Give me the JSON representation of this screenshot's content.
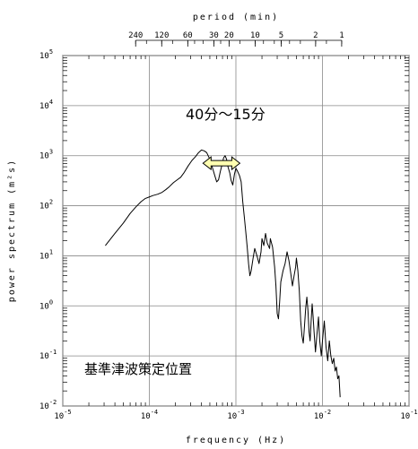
{
  "chart_data": {
    "type": "line",
    "xlabel": "frequency (Hz)",
    "ylabel": "power spectrum (m²s)",
    "top_axis_label": "period (min)",
    "x_scale": "log",
    "y_scale": "log",
    "xlim": [
      1e-05,
      0.1
    ],
    "ylim": [
      0.01,
      100000
    ],
    "grid": true,
    "x_ticks": [
      {
        "value": 1e-05,
        "base": "10",
        "exp": "-5"
      },
      {
        "value": 0.0001,
        "base": "10",
        "exp": "-4"
      },
      {
        "value": 0.001,
        "base": "10",
        "exp": "-3"
      },
      {
        "value": 0.01,
        "base": "10",
        "exp": "-2"
      },
      {
        "value": 0.1,
        "base": "10",
        "exp": "-1"
      }
    ],
    "y_ticks": [
      {
        "value": 0.01,
        "base": "10",
        "exp": "-2"
      },
      {
        "value": 0.1,
        "base": "10",
        "exp": "-1"
      },
      {
        "value": 1,
        "base": "10",
        "exp": "0"
      },
      {
        "value": 10,
        "base": "10",
        "exp": "1"
      },
      {
        "value": 100,
        "base": "10",
        "exp": "2"
      },
      {
        "value": 1000,
        "base": "10",
        "exp": "3"
      },
      {
        "value": 10000,
        "base": "10",
        "exp": "4"
      },
      {
        "value": 100000,
        "base": "10",
        "exp": "5"
      }
    ],
    "period_ticks": [
      {
        "label": "240",
        "minutes": 240
      },
      {
        "label": "120",
        "minutes": 120
      },
      {
        "label": "60",
        "minutes": 60
      },
      {
        "label": "30",
        "minutes": 30
      },
      {
        "label": "20",
        "minutes": 20
      },
      {
        "label": "10",
        "minutes": 10
      },
      {
        "label": "5",
        "minutes": 5
      },
      {
        "label": "2",
        "minutes": 2
      },
      {
        "label": "1",
        "minutes": 1
      }
    ],
    "annotations": {
      "range_label": "40分～15分",
      "range_arrow_minutes": [
        40,
        15
      ],
      "location_label": "基準津波策定位置"
    },
    "series": [
      {
        "color": "#000000",
        "points": [
          [
            3.1e-05,
            16
          ],
          [
            4e-05,
            28
          ],
          [
            5e-05,
            45
          ],
          [
            6e-05,
            70
          ],
          [
            7e-05,
            95
          ],
          [
            8e-05,
            120
          ],
          [
            9e-05,
            140
          ],
          [
            0.0001,
            150
          ],
          [
            0.00011,
            160
          ],
          [
            0.000125,
            170
          ],
          [
            0.00014,
            185
          ],
          [
            0.000155,
            210
          ],
          [
            0.00017,
            240
          ],
          [
            0.00019,
            290
          ],
          [
            0.00021,
            330
          ],
          [
            0.00023,
            370
          ],
          [
            0.00025,
            450
          ],
          [
            0.00028,
            620
          ],
          [
            0.00031,
            800
          ],
          [
            0.00034,
            950
          ],
          [
            0.00037,
            1150
          ],
          [
            0.0004,
            1300
          ],
          [
            0.00043,
            1250
          ],
          [
            0.00046,
            1150
          ],
          [
            0.0005,
            850
          ],
          [
            0.00054,
            550
          ],
          [
            0.00057,
            400
          ],
          [
            0.0006,
            300
          ],
          [
            0.00063,
            330
          ],
          [
            0.00066,
            480
          ],
          [
            0.00069,
            650
          ],
          [
            0.00072,
            900
          ],
          [
            0.00075,
            1000
          ],
          [
            0.00078,
            850
          ],
          [
            0.00081,
            600
          ],
          [
            0.00085,
            450
          ],
          [
            0.00088,
            320
          ],
          [
            0.00092,
            260
          ],
          [
            0.00096,
            420
          ],
          [
            0.001,
            560
          ],
          [
            0.00105,
            480
          ],
          [
            0.0011,
            400
          ],
          [
            0.00115,
            300
          ],
          [
            0.0012,
            120
          ],
          [
            0.00125,
            60
          ],
          [
            0.0013,
            30
          ],
          [
            0.00135,
            15
          ],
          [
            0.0014,
            7
          ],
          [
            0.00145,
            4
          ],
          [
            0.0015,
            5
          ],
          [
            0.00158,
            9
          ],
          [
            0.00165,
            14
          ],
          [
            0.00175,
            10
          ],
          [
            0.00185,
            7
          ],
          [
            0.00195,
            12
          ],
          [
            0.002,
            22
          ],
          [
            0.0021,
            16
          ],
          [
            0.0022,
            28
          ],
          [
            0.0023,
            18
          ],
          [
            0.00245,
            14
          ],
          [
            0.0025,
            22
          ],
          [
            0.00265,
            15
          ],
          [
            0.0028,
            6
          ],
          [
            0.0029,
            2.5
          ],
          [
            0.003,
            0.7
          ],
          [
            0.0031,
            0.55
          ],
          [
            0.0032,
            1.2
          ],
          [
            0.0033,
            3
          ],
          [
            0.0035,
            5
          ],
          [
            0.0037,
            7
          ],
          [
            0.0039,
            12
          ],
          [
            0.0041,
            8
          ],
          [
            0.0043,
            4.5
          ],
          [
            0.0045,
            2.5
          ],
          [
            0.0047,
            4
          ],
          [
            0.0049,
            6
          ],
          [
            0.005,
            9
          ],
          [
            0.0052,
            5
          ],
          [
            0.0054,
            2
          ],
          [
            0.0056,
            0.5
          ],
          [
            0.0058,
            0.25
          ],
          [
            0.006,
            0.18
          ],
          [
            0.0062,
            0.4
          ],
          [
            0.0064,
            0.9
          ],
          [
            0.0066,
            1.5
          ],
          [
            0.0068,
            0.8
          ],
          [
            0.007,
            0.3
          ],
          [
            0.0072,
            0.2
          ],
          [
            0.0074,
            0.5
          ],
          [
            0.0076,
            1.1
          ],
          [
            0.0078,
            0.6
          ],
          [
            0.008,
            0.3
          ],
          [
            0.0083,
            0.12
          ],
          [
            0.0086,
            0.25
          ],
          [
            0.009,
            0.6
          ],
          [
            0.0093,
            0.2
          ],
          [
            0.0097,
            0.1
          ],
          [
            0.01,
            0.2
          ],
          [
            0.0105,
            0.5
          ],
          [
            0.011,
            0.15
          ],
          [
            0.0115,
            0.08
          ],
          [
            0.012,
            0.2
          ],
          [
            0.0125,
            0.1
          ],
          [
            0.013,
            0.07
          ],
          [
            0.0135,
            0.09
          ],
          [
            0.014,
            0.05
          ],
          [
            0.0145,
            0.06
          ],
          [
            0.015,
            0.035
          ],
          [
            0.0155,
            0.04
          ],
          [
            0.016,
            0.015
          ]
        ]
      }
    ]
  }
}
